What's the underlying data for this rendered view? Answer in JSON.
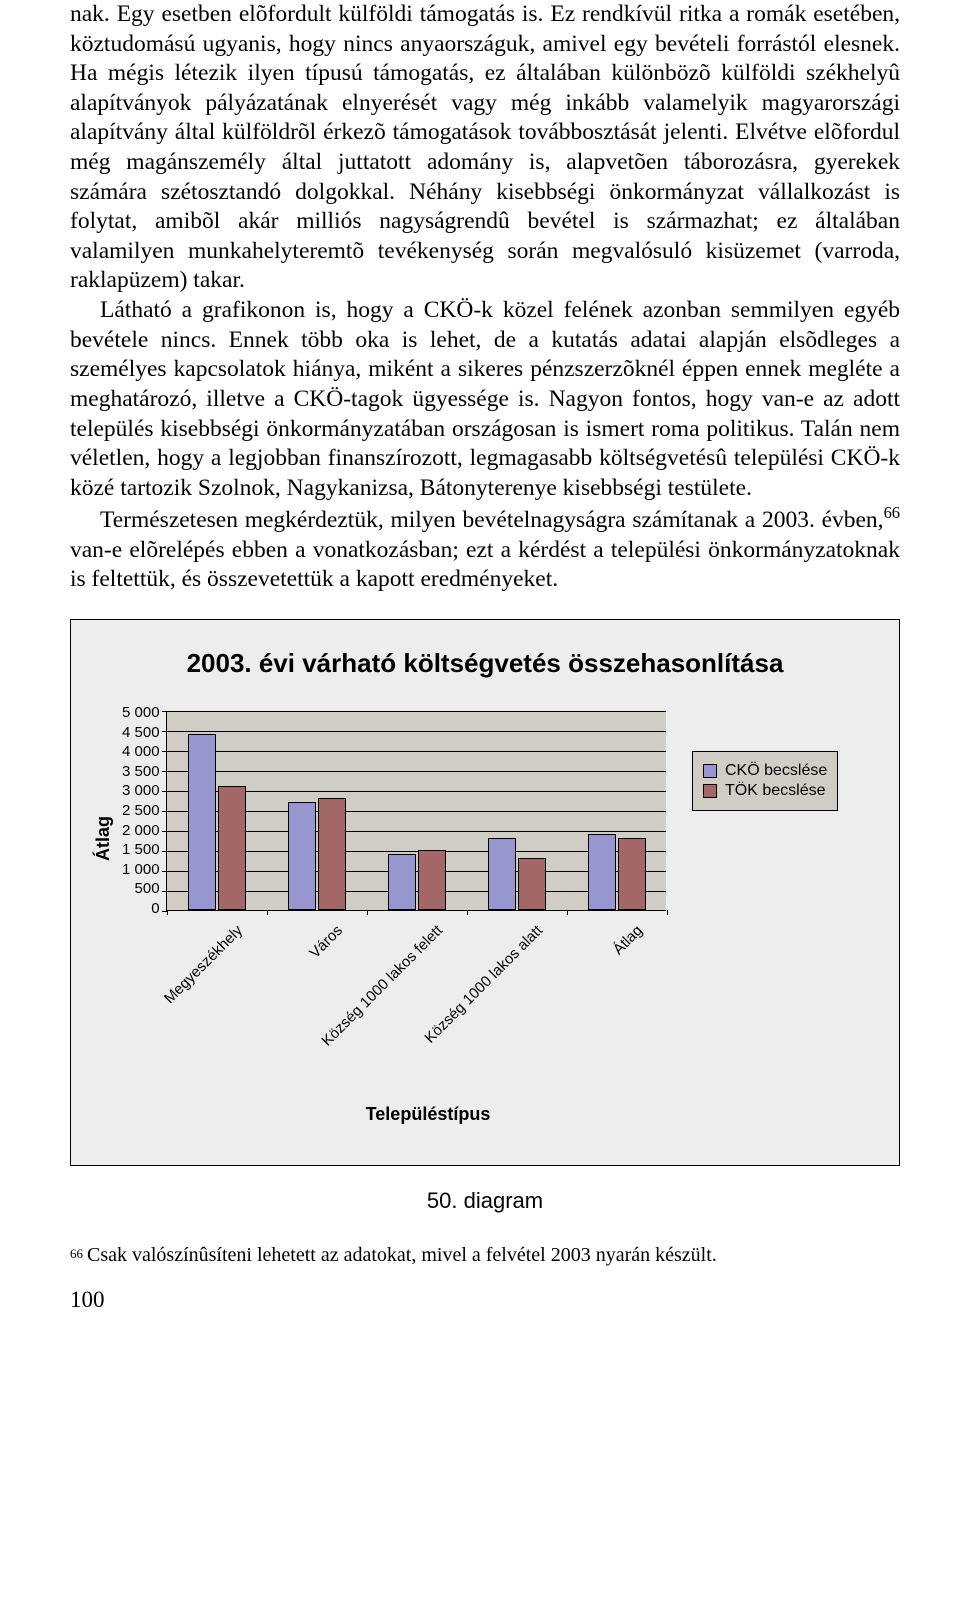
{
  "paragraphs": {
    "p1": "nak. Egy esetben elõfordult külföldi támogatás is. Ez rendkívül ritka a romák esetében, köztudomású ugyanis, hogy nincs anyaországuk, amivel egy bevételi forrástól elesnek. Ha mégis létezik ilyen típusú támogatás, ez általában különbözõ külföldi székhelyû alapítványok pályázatának elnyerését vagy még inkább valamelyik magyarországi alapítvány által külföldrõl érkezõ támogatások továbbosztását jelenti. Elvétve elõfordul még magánszemély által juttatott adomány is, alapvetõen táborozásra, gyerekek számára szétosztandó dolgokkal. Néhány kisebbségi önkormányzat vállalkozást is folytat, amibõl akár milliós nagyságrendû bevétel is származhat; ez általában valamilyen munkahelyteremtõ tevékenység során megvalósuló kisüzemet (varroda, raklapüzem) takar.",
    "p2": "Látható a grafikonon is, hogy a CKÖ-k közel felének azonban semmilyen egyéb bevétele nincs. Ennek több oka is lehet, de a kutatás adatai alapján elsõdleges a személyes kapcsolatok hiánya, miként a sikeres pénzszerzõknél éppen ennek megléte a meghatározó, illetve a CKÖ-tagok ügyessége is. Nagyon fontos, hogy van-e az adott település kisebbségi önkormányzatában országosan is ismert roma politikus. Talán nem véletlen, hogy a legjobban finanszírozott, legmagasabb költségvetésû települési CKÖ-k közé tartozik Szolnok, Nagykanizsa, Bátonyterenye kisebbségi testülete.",
    "p3a": "Természetesen megkérdeztük, milyen bevételnagyságra számítanak a 2003. évben,",
    "p3sup": "66",
    "p3b": " van-e elõrelépés ebben a vonatkozásban; ezt a kérdést a települési önkormányzatoknak is feltettük, és összevetettük a kapott eredményeket."
  },
  "chart": {
    "title": "2003. évi várható költségvetés összehasonlítása",
    "ylabel": "Átlag",
    "xlabel": "Településtípus",
    "categories": [
      "Megyeszékhely",
      "Város",
      "Község 1000 lakos felett",
      "Község 1000 lakos alatt",
      "Átlag"
    ],
    "series": [
      {
        "name": "CKÖ becslése",
        "color": "#9896cf",
        "values": [
          4400,
          2700,
          1400,
          1800,
          1900
        ]
      },
      {
        "name": "TÖK becslése",
        "color": "#a46767",
        "values": [
          3100,
          2800,
          1500,
          1300,
          1800
        ]
      }
    ],
    "ylim_max": 5000,
    "ytick_step": 500,
    "yticks": [
      "5 000",
      "4 500",
      "4 000",
      "3 500",
      "3 000",
      "2 500",
      "2 000",
      "1 500",
      "1 000",
      "500",
      "0"
    ],
    "plot_bg": "#d0cdc4",
    "grid_color": "#000000",
    "panel_bg": "#ededed"
  },
  "caption": "50. diagram",
  "footnote": {
    "num": "66",
    "text": "Csak valószínûsíteni lehetett az adatokat, mivel a felvétel 2003 nyarán készült."
  },
  "page_number": "100"
}
